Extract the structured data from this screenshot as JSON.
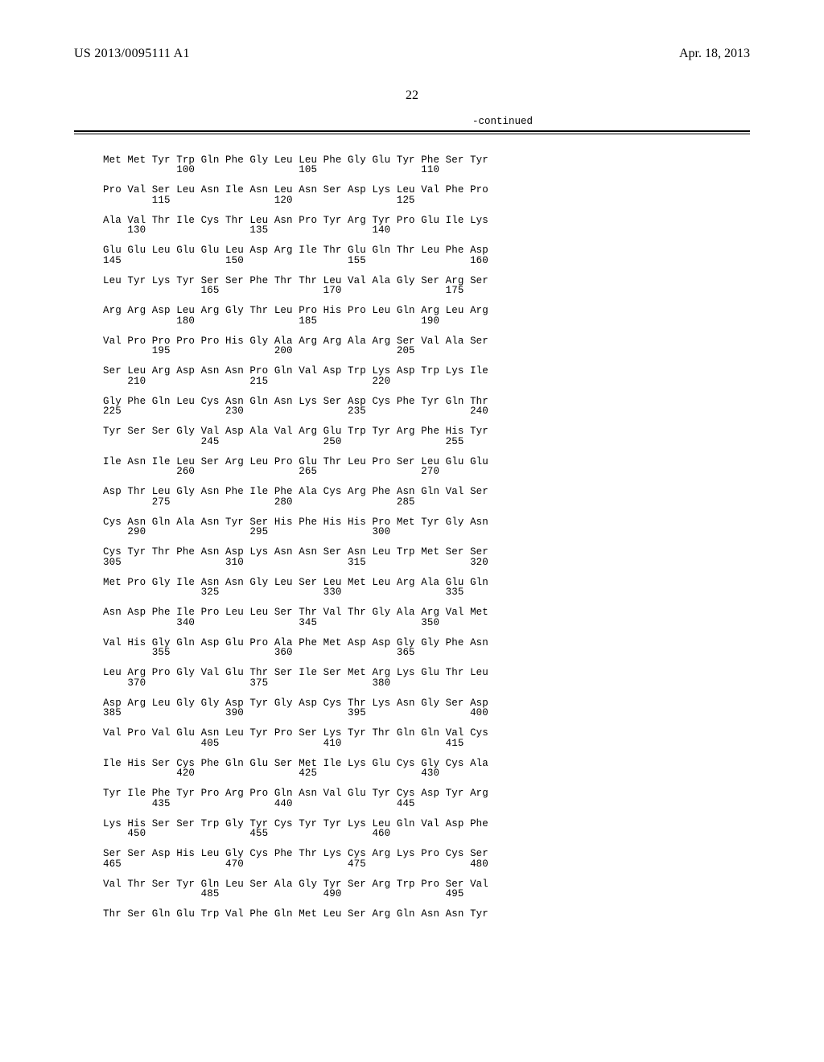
{
  "header": {
    "pub_number": "US 2013/0095111 A1",
    "pub_date": "Apr. 18, 2013",
    "page_num": "22",
    "continued": "-continued"
  },
  "sequence_lines": [
    "Met Met Tyr Trp Gln Phe Gly Leu Leu Phe Gly Glu Tyr Phe Ser Tyr",
    "            100                 105                 110",
    "",
    "Pro Val Ser Leu Asn Ile Asn Leu Asn Ser Asp Lys Leu Val Phe Pro",
    "        115                 120                 125",
    "",
    "Ala Val Thr Ile Cys Thr Leu Asn Pro Tyr Arg Tyr Pro Glu Ile Lys",
    "    130                 135                 140",
    "",
    "Glu Glu Leu Glu Glu Leu Asp Arg Ile Thr Glu Gln Thr Leu Phe Asp",
    "145                 150                 155                 160",
    "",
    "Leu Tyr Lys Tyr Ser Ser Phe Thr Thr Leu Val Ala Gly Ser Arg Ser",
    "                165                 170                 175",
    "",
    "Arg Arg Asp Leu Arg Gly Thr Leu Pro His Pro Leu Gln Arg Leu Arg",
    "            180                 185                 190",
    "",
    "Val Pro Pro Pro Pro His Gly Ala Arg Arg Ala Arg Ser Val Ala Ser",
    "        195                 200                 205",
    "",
    "Ser Leu Arg Asp Asn Asn Pro Gln Val Asp Trp Lys Asp Trp Lys Ile",
    "    210                 215                 220",
    "",
    "Gly Phe Gln Leu Cys Asn Gln Asn Lys Ser Asp Cys Phe Tyr Gln Thr",
    "225                 230                 235                 240",
    "",
    "Tyr Ser Ser Gly Val Asp Ala Val Arg Glu Trp Tyr Arg Phe His Tyr",
    "                245                 250                 255",
    "",
    "Ile Asn Ile Leu Ser Arg Leu Pro Glu Thr Leu Pro Ser Leu Glu Glu",
    "            260                 265                 270",
    "",
    "Asp Thr Leu Gly Asn Phe Ile Phe Ala Cys Arg Phe Asn Gln Val Ser",
    "        275                 280                 285",
    "",
    "Cys Asn Gln Ala Asn Tyr Ser His Phe His His Pro Met Tyr Gly Asn",
    "    290                 295                 300",
    "",
    "Cys Tyr Thr Phe Asn Asp Lys Asn Asn Ser Asn Leu Trp Met Ser Ser",
    "305                 310                 315                 320",
    "",
    "Met Pro Gly Ile Asn Asn Gly Leu Ser Leu Met Leu Arg Ala Glu Gln",
    "                325                 330                 335",
    "",
    "Asn Asp Phe Ile Pro Leu Leu Ser Thr Val Thr Gly Ala Arg Val Met",
    "            340                 345                 350",
    "",
    "Val His Gly Gln Asp Glu Pro Ala Phe Met Asp Asp Gly Gly Phe Asn",
    "        355                 360                 365",
    "",
    "Leu Arg Pro Gly Val Glu Thr Ser Ile Ser Met Arg Lys Glu Thr Leu",
    "    370                 375                 380",
    "",
    "Asp Arg Leu Gly Gly Asp Tyr Gly Asp Cys Thr Lys Asn Gly Ser Asp",
    "385                 390                 395                 400",
    "",
    "Val Pro Val Glu Asn Leu Tyr Pro Ser Lys Tyr Thr Gln Gln Val Cys",
    "                405                 410                 415",
    "",
    "Ile His Ser Cys Phe Gln Glu Ser Met Ile Lys Glu Cys Gly Cys Ala",
    "            420                 425                 430",
    "",
    "Tyr Ile Phe Tyr Pro Arg Pro Gln Asn Val Glu Tyr Cys Asp Tyr Arg",
    "        435                 440                 445",
    "",
    "Lys His Ser Ser Trp Gly Tyr Cys Tyr Tyr Lys Leu Gln Val Asp Phe",
    "    450                 455                 460",
    "",
    "Ser Ser Asp His Leu Gly Cys Phe Thr Lys Cys Arg Lys Pro Cys Ser",
    "465                 470                 475                 480",
    "",
    "Val Thr Ser Tyr Gln Leu Ser Ala Gly Tyr Ser Arg Trp Pro Ser Val",
    "                485                 490                 495",
    "",
    "Thr Ser Gln Glu Trp Val Phe Gln Met Leu Ser Arg Gln Asn Asn Tyr"
  ]
}
